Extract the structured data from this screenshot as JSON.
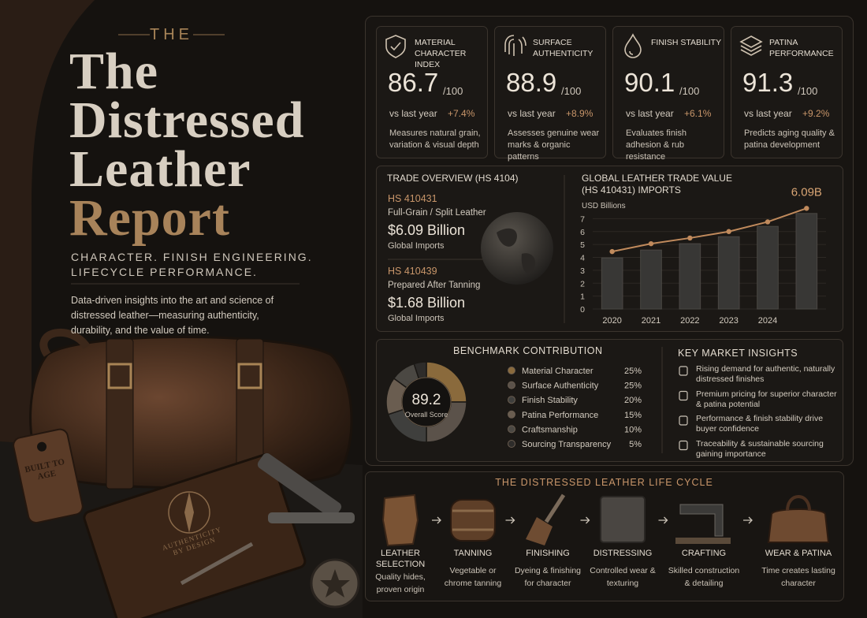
{
  "header": {
    "eyebrow": "THE",
    "title_lines": [
      "The",
      "Distressed",
      "Leather",
      "Report"
    ],
    "tagline_lines": [
      "CHARACTER. FINISH ENGINEERING.",
      "LIFECYCLE PERFORMANCE."
    ],
    "description": "Data-driven insights into the art and science of distressed leather—measuring authenticity, durability, and the value of time."
  },
  "illustration": {
    "tag_text": "BUILT TO AGE",
    "notebook_text": "AUTHENTICITY BY DESIGN"
  },
  "kpis": [
    {
      "label": "MATERIAL CHARACTER INDEX",
      "value": "86.7",
      "scale": "/100",
      "comparison": "vs last year",
      "change": "+7.4%",
      "description": "Measures natural grain, variation & visual depth"
    },
    {
      "label": "SURFACE AUTHENTICITY",
      "value": "88.9",
      "scale": "/100",
      "comparison": "vs last year",
      "change": "+8.9%",
      "description": "Assesses genuine wear marks & organic patterns"
    },
    {
      "label": "FINISH STABILITY",
      "value": "90.1",
      "scale": "/100",
      "comparison": "vs last year",
      "change": "+6.1%",
      "description": "Evaluates finish adhesion & rub resistance"
    },
    {
      "label": "PATINA PERFORMANCE",
      "value": "91.3",
      "scale": "/100",
      "comparison": "vs last year",
      "change": "+9.2%",
      "description": "Predicts aging quality & patina development"
    }
  ],
  "trade_overview": {
    "title": "TRADE OVERVIEW (HS 4104)",
    "items": [
      {
        "code": "HS 410431",
        "product": "Full-Grain / Split Leather",
        "value": "$6.09 Billion",
        "note": "Global Imports"
      },
      {
        "code": "HS 410439",
        "product": "Prepared After Tanning",
        "value": "$1.68 Billion",
        "note": "Global Imports"
      }
    ]
  },
  "chart_data": [
    {
      "type": "bar",
      "title": "GLOBAL LEATHER TRADE VALUE (HS 410431) IMPORTS",
      "y_label": "USD Billions",
      "categories": [
        "2020",
        "2021",
        "2022",
        "2023",
        "2024",
        null
      ],
      "series": [
        {
          "type": "bar",
          "color": "#383735",
          "values": [
            3.96,
            4.57,
            5.06,
            5.6,
            6.4,
            7.4
          ]
        },
        {
          "type": "line",
          "color": "#c08a5c",
          "values": [
            4.45,
            5.06,
            5.5,
            6.0,
            6.75,
            7.8
          ]
        }
      ],
      "annotation": "6.09B",
      "ylim": [
        0,
        8
      ],
      "yticks": [
        0,
        1,
        2,
        3,
        4,
        5,
        6,
        7
      ],
      "grid": true
    },
    {
      "type": "donut",
      "title": "BENCHMARK CONTRIBUTION",
      "center_value": "89.2",
      "center_label": "Overall Score",
      "categories": [
        "Material Character",
        "Surface Authenticity",
        "Finish Stability",
        "Patina Performance",
        "Craftsmanship",
        "Sourcing Transparency"
      ],
      "values": [
        25,
        25,
        20,
        15,
        10,
        5
      ],
      "value_labels": [
        "25%",
        "25%",
        "20%",
        "15%",
        "10%",
        "5%"
      ],
      "colors": [
        "#8a6a3c",
        "#5b524a",
        "#3f3f3d",
        "#6a5d50",
        "#4b4843",
        "#2e2c2a"
      ]
    }
  ],
  "key_insights": {
    "title": "KEY MARKET INSIGHTS",
    "items": [
      "Rising demand for authentic, naturally distressed finishes",
      "Premium pricing for superior character & patina potential",
      "Performance & finish stability drive buyer confidence",
      "Traceability & sustainable sourcing gaining importance"
    ]
  },
  "lifecycle": {
    "title": "THE DISTRESSED LEATHER LIFE CYCLE",
    "steps": [
      {
        "name": "LEATHER SELECTION",
        "description": "Quality hides, proven origin"
      },
      {
        "name": "TANNING",
        "description": "Vegetable or chrome tanning"
      },
      {
        "name": "FINISHING",
        "description": "Dyeing & finishing for character"
      },
      {
        "name": "DISTRESSING",
        "description": "Controlled wear & texturing"
      },
      {
        "name": "CRAFTING",
        "description": "Skilled construction & detailing"
      },
      {
        "name": "WEAR & PATINA",
        "description": "Time creates lasting character"
      }
    ]
  }
}
